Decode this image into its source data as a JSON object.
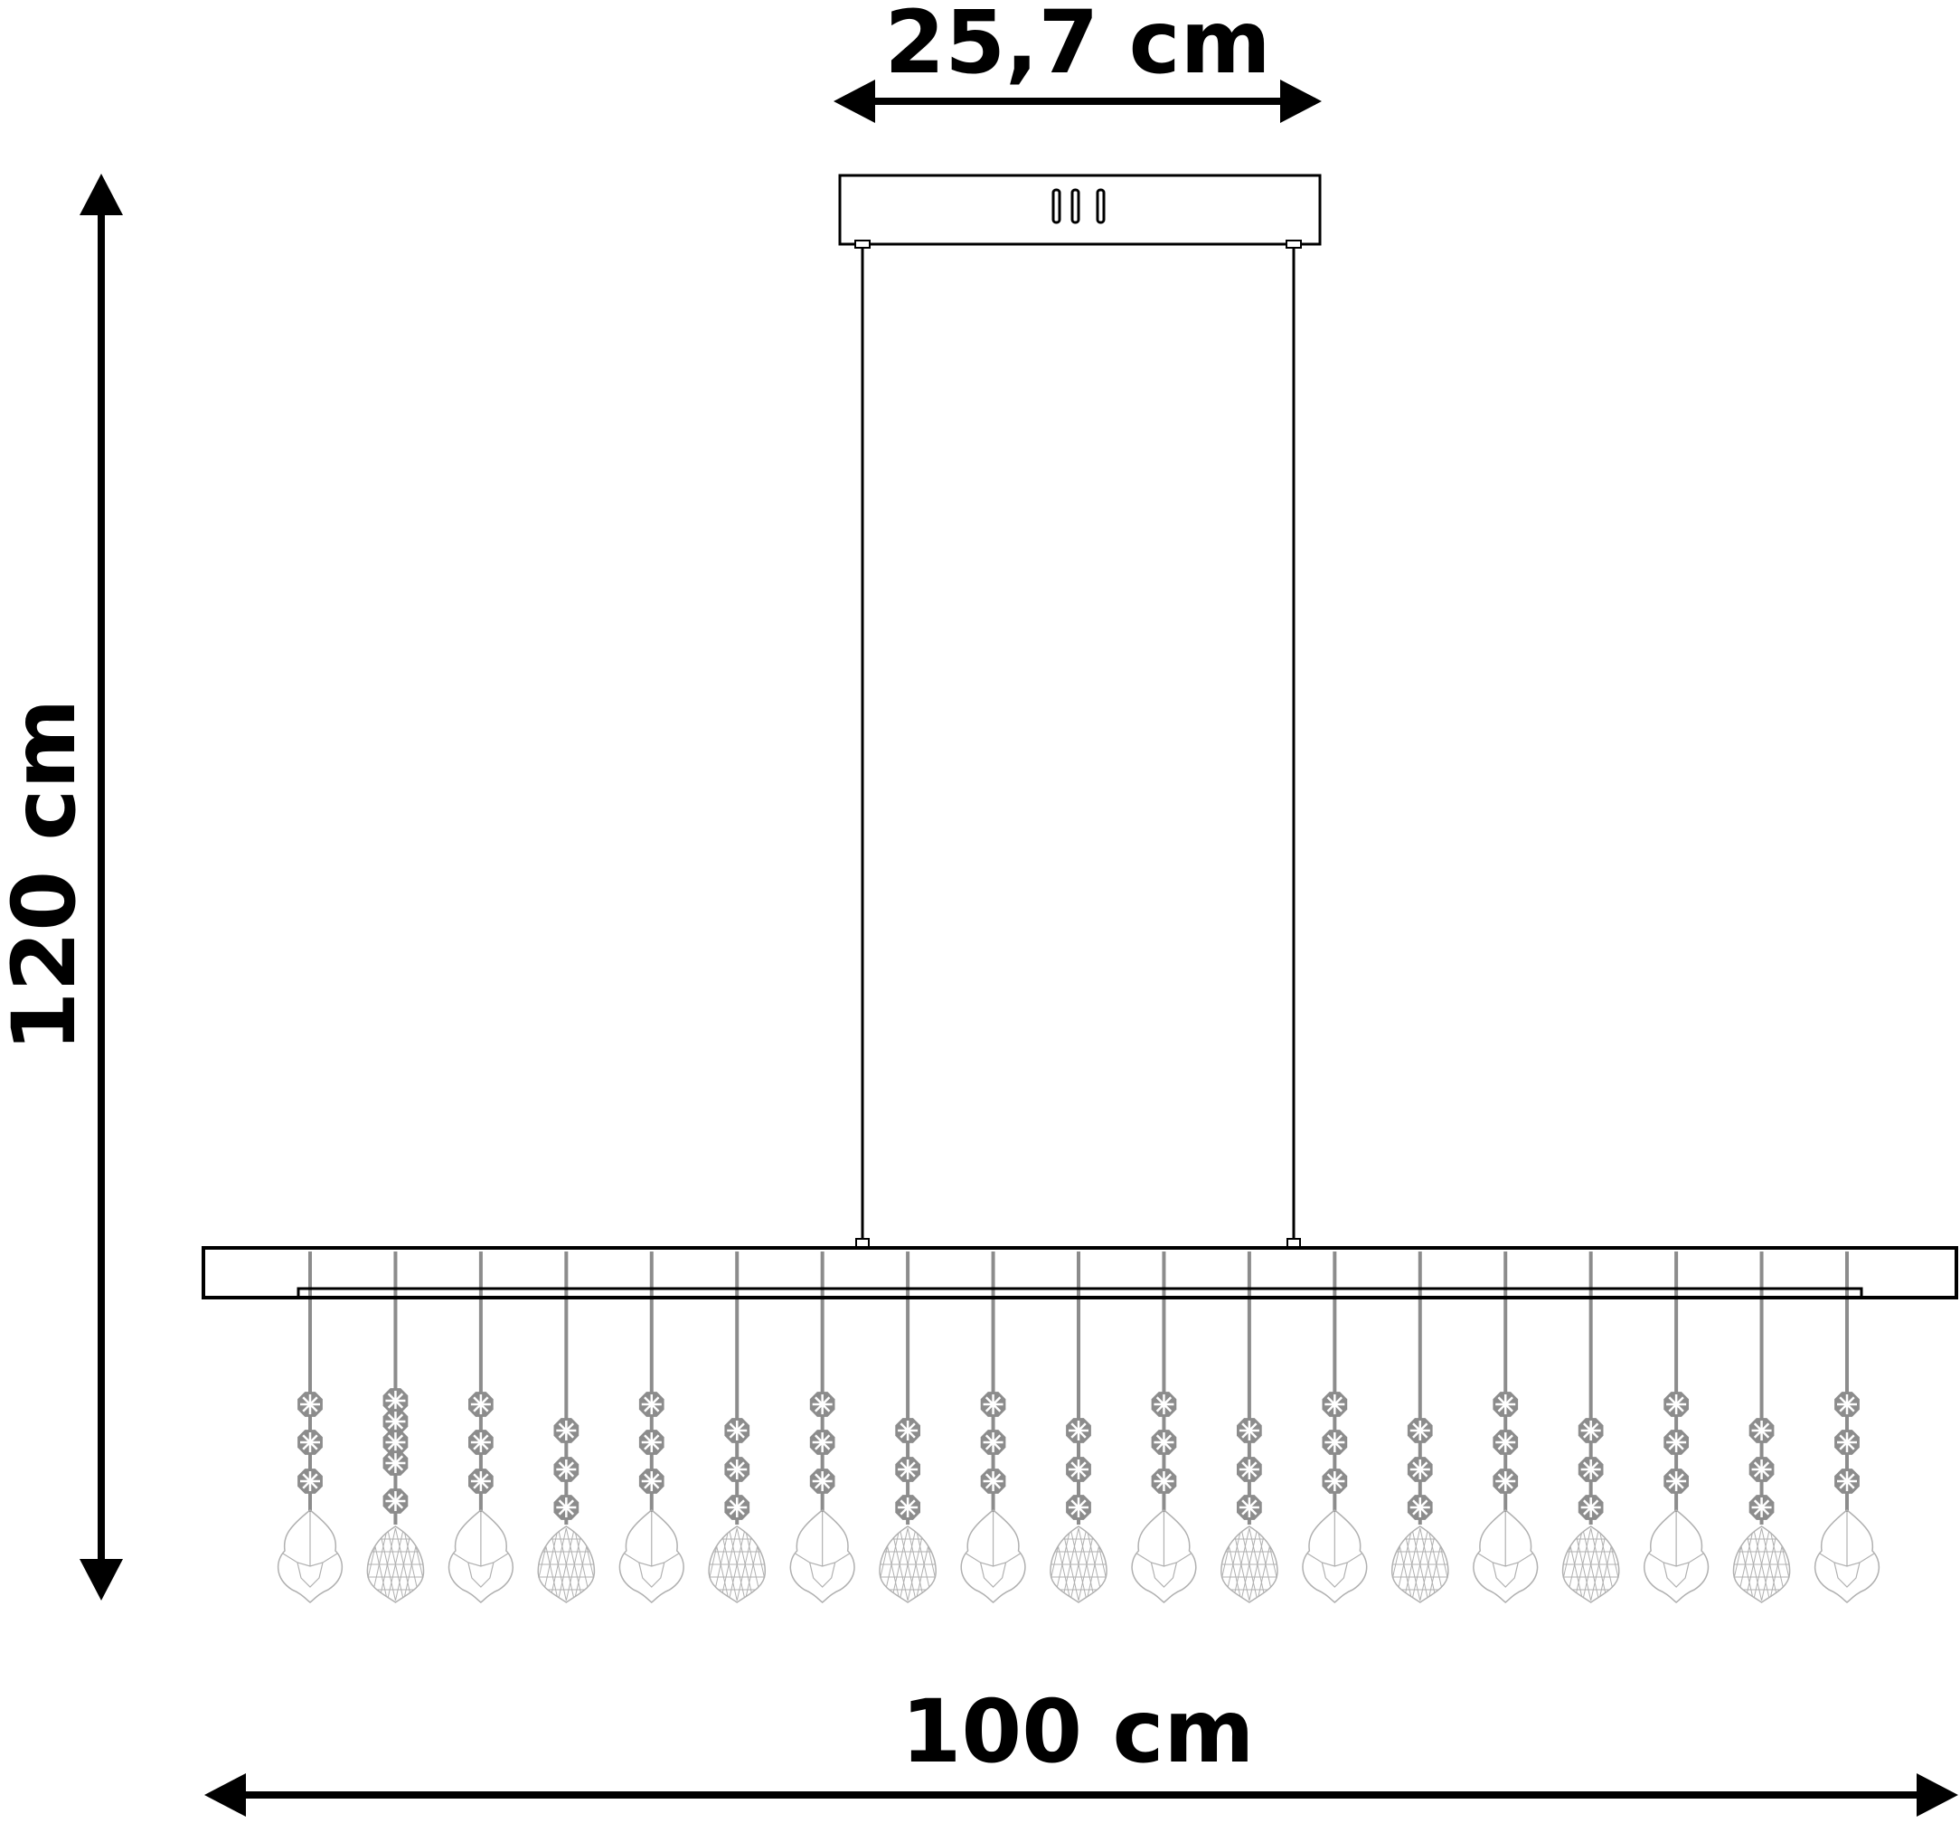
{
  "dimensions": {
    "canopy_width": "25,7 cm",
    "total_height": "120 cm",
    "bar_length": "100 cm"
  },
  "pendant_count": 19,
  "colors": {
    "line": "#000000",
    "crystal": "#8c8c8c",
    "crystal_outline": "#b0b0b0"
  }
}
